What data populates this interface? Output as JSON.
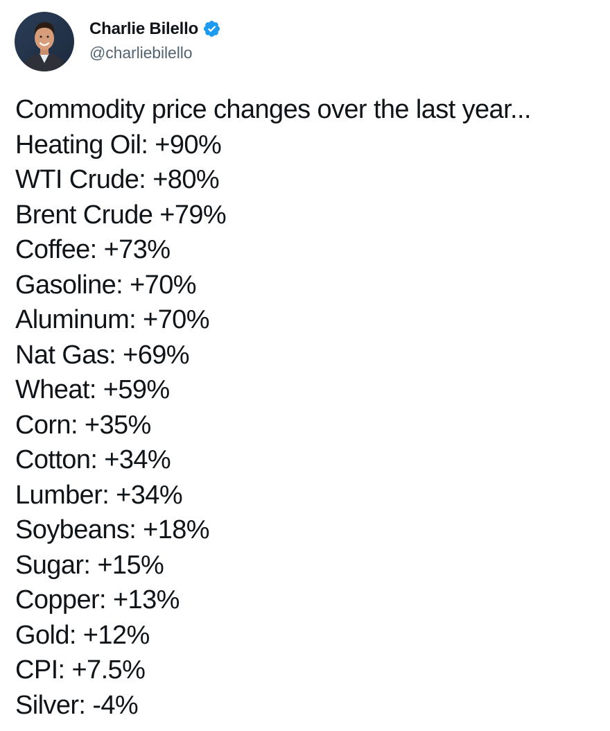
{
  "author": {
    "display_name": "Charlie Bilello",
    "handle": "@charliebilello",
    "verified": true,
    "verified_color": "#1d9bf0",
    "avatar": "profile-photo"
  },
  "tweet": {
    "intro": "Commodity price changes over the last year...",
    "items": [
      "Heating Oil: +90%",
      "WTI Crude: +80%",
      "Brent Crude +79%",
      "Coffee: +73%",
      "Gasoline: +70%",
      "Aluminum: +70%",
      "Nat Gas: +69%",
      "Wheat: +59%",
      "Corn: +35%",
      "Cotton: +34%",
      "Lumber: +34%",
      "Soybeans: +18%",
      "Sugar: +15%",
      "Copper: +13%",
      "Gold: +12%",
      "CPI: +7.5%",
      "Silver: -4%"
    ]
  },
  "colors": {
    "text": "#0f1419",
    "secondary_text": "#536471",
    "background": "#ffffff"
  }
}
